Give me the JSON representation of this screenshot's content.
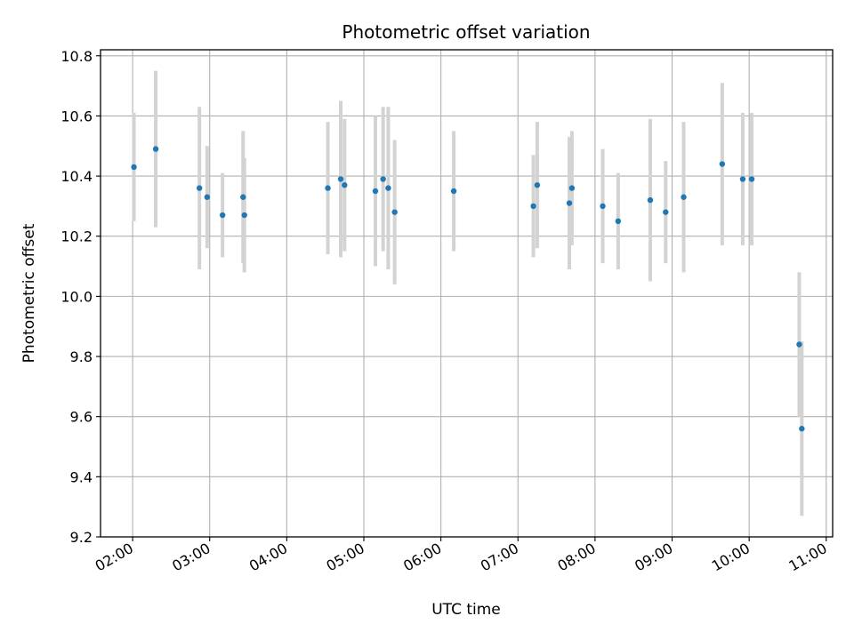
{
  "chart_data": {
    "type": "scatter",
    "title": "Photometric offset variation",
    "xlabel": "UTC time",
    "ylabel": "Photometric offset",
    "ylim": [
      9.2,
      10.82
    ],
    "xlim": [
      "01:35",
      "11:05"
    ],
    "x_ticks": [
      "02:00",
      "03:00",
      "04:00",
      "05:00",
      "06:00",
      "07:00",
      "08:00",
      "09:00",
      "10:00",
      "11:00"
    ],
    "y_ticks": [
      "9.2",
      "9.4",
      "9.6",
      "9.8",
      "10.0",
      "10.2",
      "10.4",
      "10.6",
      "10.8"
    ],
    "grid": true,
    "marker_color": "#1f77b4",
    "errorbar_color": "#d3d3d3",
    "points": [
      {
        "x": "02:01",
        "y": 10.43,
        "err": 0.18
      },
      {
        "x": "02:18",
        "y": 10.49,
        "err": 0.26
      },
      {
        "x": "02:52",
        "y": 10.36,
        "err": 0.27
      },
      {
        "x": "02:58",
        "y": 10.33,
        "err": 0.17
      },
      {
        "x": "03:10",
        "y": 10.27,
        "err": 0.14
      },
      {
        "x": "03:26",
        "y": 10.33,
        "err": 0.22
      },
      {
        "x": "03:27",
        "y": 10.27,
        "err": 0.19
      },
      {
        "x": "04:32",
        "y": 10.36,
        "err": 0.22
      },
      {
        "x": "04:42",
        "y": 10.39,
        "err": 0.26
      },
      {
        "x": "04:45",
        "y": 10.37,
        "err": 0.22
      },
      {
        "x": "05:09",
        "y": 10.35,
        "err": 0.25
      },
      {
        "x": "05:15",
        "y": 10.39,
        "err": 0.24
      },
      {
        "x": "05:19",
        "y": 10.36,
        "err": 0.27
      },
      {
        "x": "05:24",
        "y": 10.28,
        "err": 0.24
      },
      {
        "x": "06:10",
        "y": 10.35,
        "err": 0.2
      },
      {
        "x": "07:12",
        "y": 10.3,
        "err": 0.17
      },
      {
        "x": "07:15",
        "y": 10.37,
        "err": 0.21
      },
      {
        "x": "07:40",
        "y": 10.31,
        "err": 0.22
      },
      {
        "x": "07:42",
        "y": 10.36,
        "err": 0.19
      },
      {
        "x": "08:06",
        "y": 10.3,
        "err": 0.19
      },
      {
        "x": "08:18",
        "y": 10.25,
        "err": 0.16
      },
      {
        "x": "08:43",
        "y": 10.32,
        "err": 0.27
      },
      {
        "x": "08:55",
        "y": 10.28,
        "err": 0.17
      },
      {
        "x": "09:09",
        "y": 10.33,
        "err": 0.25
      },
      {
        "x": "09:39",
        "y": 10.44,
        "err": 0.27
      },
      {
        "x": "09:55",
        "y": 10.39,
        "err": 0.22
      },
      {
        "x": "10:02",
        "y": 10.39,
        "err": 0.22
      },
      {
        "x": "10:39",
        "y": 9.84,
        "err": 0.24
      },
      {
        "x": "10:41",
        "y": 9.56,
        "err": 0.29
      }
    ]
  }
}
